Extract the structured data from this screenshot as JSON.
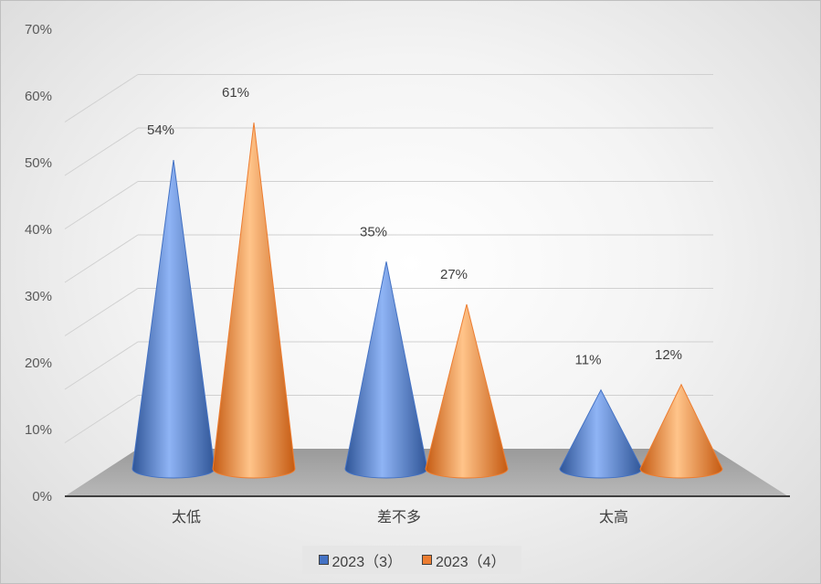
{
  "chart_data": {
    "type": "bar",
    "subtype": "3d-cone",
    "categories": [
      "太低",
      "差不多",
      "太高"
    ],
    "series": [
      {
        "name": "2023（3）",
        "values": [
          54,
          35,
          11
        ],
        "data_labels": [
          "54%",
          "35%",
          "11%"
        ],
        "color": "#4472C4"
      },
      {
        "name": "2023（4）",
        "values": [
          61,
          27,
          12
        ],
        "data_labels": [
          "61%",
          "27%",
          "12%"
        ],
        "color": "#ED7D31"
      }
    ],
    "ylim": [
      0,
      70
    ],
    "yticks": [
      "0%",
      "10%",
      "20%",
      "30%",
      "40%",
      "50%",
      "60%",
      "70%"
    ],
    "grid": true,
    "legend_position": "bottom"
  }
}
